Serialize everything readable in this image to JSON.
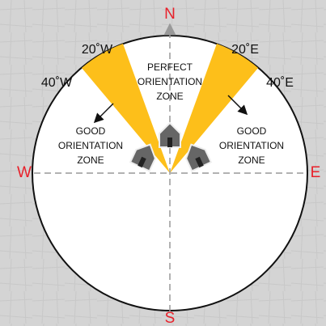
{
  "compass": {
    "north": "N",
    "south": "S",
    "west": "W",
    "east": "E"
  },
  "bearings": {
    "west_20": "20˚W",
    "west_40": "40˚W",
    "east_20": "20˚E",
    "east_40": "40˚E"
  },
  "zones": {
    "perfect": [
      "PERFECT",
      "ORIENTATION",
      "ZONE"
    ],
    "good_west": [
      "GOOD",
      "ORIENTATION",
      "ZONE"
    ],
    "good_east": [
      "GOOD",
      "ORIENTATION",
      "ZONE"
    ]
  }
}
